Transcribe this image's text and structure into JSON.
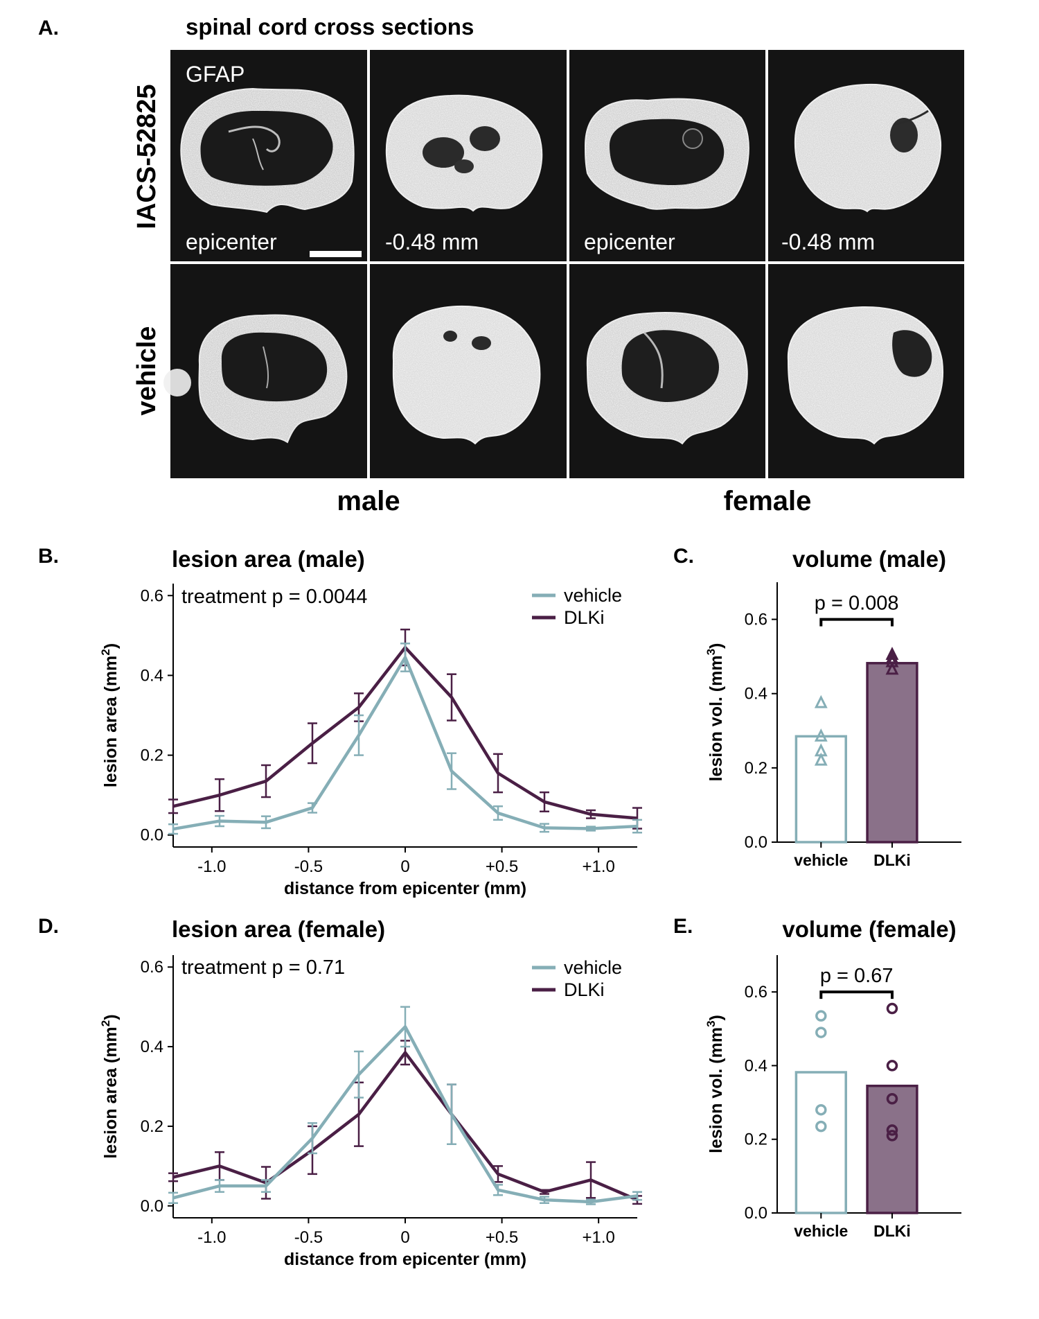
{
  "colors": {
    "vehicle": "#85aeb6",
    "dlki": "#4a1f45",
    "dlki_fill": "#8a7189",
    "micro_bg": "#141414"
  },
  "panel_a": {
    "letter": "A.",
    "title": "spinal cord cross sections",
    "stain_label": "GFAP",
    "row_labels": [
      "IACS-52825",
      "vehicle"
    ],
    "col_labels": [
      "male",
      "female"
    ],
    "image_labels": [
      "epicenter",
      "-0.48 mm",
      "epicenter",
      "-0.48 mm"
    ]
  },
  "chart_data": [
    {
      "id": "B",
      "letter": "B.",
      "type": "line",
      "title": "lesion area (male)",
      "annotation": "treatment p = 0.0044",
      "xlabel": "distance from epicenter (mm)",
      "ylabel": "lesion area (mm",
      "ylabel_sup": "2",
      "ylabel_tail": ")",
      "xlim": [
        -1.2,
        1.2
      ],
      "ylim": [
        -0.03,
        0.63
      ],
      "xticks": [
        -1.0,
        -0.5,
        0,
        0.5,
        1.0
      ],
      "xtick_labels": [
        "-1.0",
        "-0.5",
        "0",
        "+0.5",
        "+1.0"
      ],
      "yticks": [
        0.0,
        0.2,
        0.4,
        0.6
      ],
      "ytick_labels": [
        "0.0",
        "0.2",
        "0.4",
        "0.6"
      ],
      "legend": [
        "vehicle",
        "DLKi"
      ],
      "x": [
        -1.2,
        -0.96,
        -0.72,
        -0.48,
        -0.24,
        0,
        0.24,
        0.48,
        0.72,
        0.96,
        1.2
      ],
      "series": [
        {
          "name": "vehicle",
          "values": [
            0.015,
            0.035,
            0.032,
            0.068,
            0.25,
            0.445,
            0.16,
            0.055,
            0.018,
            0.016,
            0.022
          ],
          "err": [
            0.012,
            0.013,
            0.015,
            0.012,
            0.05,
            0.035,
            0.045,
            0.017,
            0.01,
            0.005,
            0.016
          ]
        },
        {
          "name": "DLKi",
          "values": [
            0.072,
            0.1,
            0.135,
            0.23,
            0.32,
            0.47,
            0.345,
            0.155,
            0.083,
            0.052,
            0.042
          ],
          "err": [
            0.017,
            0.04,
            0.04,
            0.05,
            0.035,
            0.045,
            0.058,
            0.048,
            0.024,
            0.01,
            0.026
          ]
        }
      ]
    },
    {
      "id": "C",
      "letter": "C.",
      "type": "bar",
      "title": "volume (male)",
      "ylabel": "lesion vol. (mm",
      "ylabel_sup": "3",
      "ylabel_tail": ")",
      "ylim": [
        0.0,
        0.7
      ],
      "yticks": [
        0.0,
        0.2,
        0.4,
        0.6
      ],
      "ytick_labels": [
        "0.0",
        "0.2",
        "0.4",
        "0.6"
      ],
      "categories": [
        "vehicle",
        "DLKi"
      ],
      "values": [
        0.285,
        0.482
      ],
      "points": [
        [
          0.375,
          0.285,
          0.245,
          0.22
        ],
        [
          0.505,
          0.495,
          0.485,
          0.465
        ]
      ],
      "marker": "triangle",
      "pvalue": "p = 0.008",
      "bracket_y": 0.6
    },
    {
      "id": "D",
      "letter": "D.",
      "type": "line",
      "title": "lesion area (female)",
      "annotation": "treatment p = 0.71",
      "xlabel": "distance from epicenter (mm)",
      "ylabel": "lesion area (mm",
      "ylabel_sup": "2",
      "ylabel_tail": ")",
      "xlim": [
        -1.2,
        1.2
      ],
      "ylim": [
        -0.03,
        0.63
      ],
      "xticks": [
        -1.0,
        -0.5,
        0,
        0.5,
        1.0
      ],
      "xtick_labels": [
        "-1.0",
        "-0.5",
        "0",
        "+0.5",
        "+1.0"
      ],
      "yticks": [
        0.0,
        0.2,
        0.4,
        0.6
      ],
      "ytick_labels": [
        "0.0",
        "0.2",
        "0.4",
        "0.6"
      ],
      "legend": [
        "vehicle",
        "DLKi"
      ],
      "x": [
        -1.2,
        -0.96,
        -0.72,
        -0.48,
        -0.24,
        0,
        0.24,
        0.48,
        0.72,
        0.96,
        1.2
      ],
      "series": [
        {
          "name": "vehicle",
          "values": [
            0.02,
            0.05,
            0.05,
            0.17,
            0.33,
            0.45,
            0.23,
            0.04,
            0.015,
            0.01,
            0.025
          ],
          "err": [
            0.013,
            0.015,
            0.015,
            0.038,
            0.058,
            0.05,
            0.075,
            0.013,
            0.008,
            0.006,
            0.01
          ]
        },
        {
          "name": "DLKi",
          "values": [
            0.072,
            0.1,
            0.058,
            0.14,
            0.23,
            0.385,
            0.23,
            0.08,
            0.035,
            0.065,
            0.015
          ],
          "err": [
            0.01,
            0.035,
            0.04,
            0.06,
            0.08,
            0.03,
            0.075,
            0.02,
            0.005,
            0.045,
            0.01
          ]
        }
      ]
    },
    {
      "id": "E",
      "letter": "E.",
      "type": "bar",
      "title": "volume (female)",
      "ylabel": "lesion vol. (mm",
      "ylabel_sup": "3",
      "ylabel_tail": ")",
      "ylim": [
        0.0,
        0.7
      ],
      "yticks": [
        0.0,
        0.2,
        0.4,
        0.6
      ],
      "ytick_labels": [
        "0.0",
        "0.2",
        "0.4",
        "0.6"
      ],
      "categories": [
        "vehicle",
        "DLKi"
      ],
      "values": [
        0.382,
        0.345
      ],
      "points": [
        [
          0.535,
          0.49,
          0.28,
          0.235
        ],
        [
          0.555,
          0.4,
          0.31,
          0.225,
          0.21
        ]
      ],
      "marker": "circle",
      "pvalue": "p = 0.67",
      "bracket_y": 0.6
    }
  ]
}
